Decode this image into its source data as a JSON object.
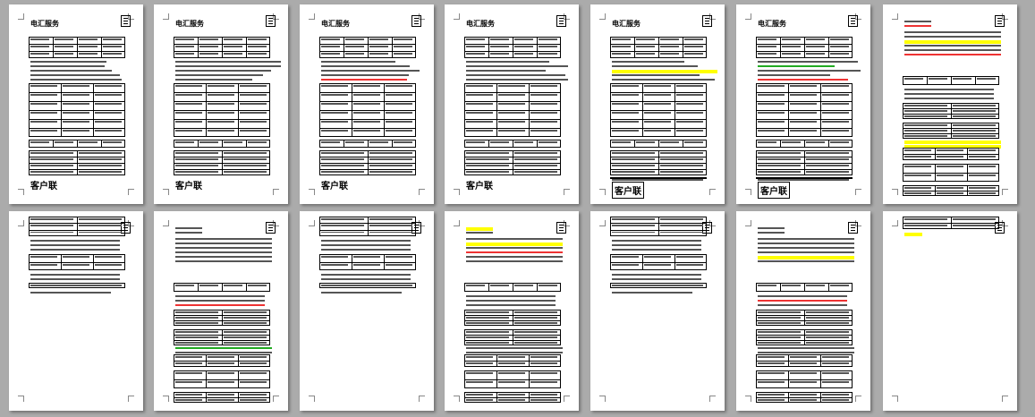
{
  "document": {
    "view": "multi-page thumbnail",
    "page_count_visible": 14,
    "colors": {
      "background": "#ababab",
      "page": "#ffffff",
      "highlight": "#ffff00",
      "red_text": "#ff0000",
      "green_text": "#00a000"
    },
    "pages": [
      {
        "type": "form",
        "title": "电汇服务",
        "label": "客户联",
        "label_boxed": false
      },
      {
        "type": "form",
        "title": "电汇服务",
        "label": "客户联",
        "label_boxed": false
      },
      {
        "type": "form",
        "title": "电汇服务",
        "label": "客户联",
        "label_boxed": false
      },
      {
        "type": "form",
        "title": "电汇服务",
        "label": "客户联",
        "label_boxed": false
      },
      {
        "type": "form-long",
        "title": "电汇服务",
        "label": "客户联",
        "label_boxed": true
      },
      {
        "type": "form-long",
        "title": "电汇服务",
        "label": "客户联",
        "label_boxed": true
      },
      {
        "type": "terms",
        "title": "",
        "label": "",
        "label_boxed": false
      },
      {
        "type": "short",
        "title": "",
        "label": "",
        "label_boxed": false
      },
      {
        "type": "terms",
        "title": "",
        "label": "",
        "label_boxed": false
      },
      {
        "type": "short",
        "title": "",
        "label": "",
        "label_boxed": false
      },
      {
        "type": "terms",
        "title": "",
        "label": "",
        "label_boxed": false
      },
      {
        "type": "short",
        "title": "",
        "label": "",
        "label_boxed": false
      },
      {
        "type": "terms",
        "title": "",
        "label": "",
        "label_boxed": false
      },
      {
        "type": "stub",
        "title": "",
        "label": "",
        "label_boxed": false
      }
    ]
  }
}
